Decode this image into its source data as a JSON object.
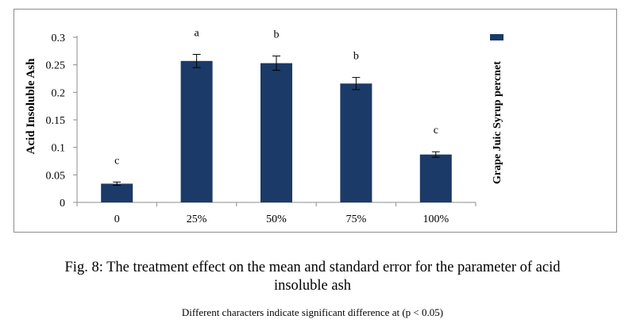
{
  "chart_data": {
    "type": "bar",
    "categories": [
      "0",
      "25%",
      "50%",
      "75%",
      "100%"
    ],
    "series": [
      {
        "name": "Grape Juic Syrup percnet",
        "values": [
          0.034,
          0.257,
          0.253,
          0.216,
          0.087
        ],
        "errors": [
          0.003,
          0.012,
          0.013,
          0.011,
          0.005
        ],
        "significance_letters": [
          "c",
          "a",
          "b",
          "b",
          "c"
        ],
        "color": "#1b3a67"
      }
    ],
    "ylabel": "Acid Insoluble Ash",
    "ylim": [
      0,
      0.3
    ],
    "yticks": [
      0,
      0.05,
      0.1,
      0.15,
      0.2,
      0.25,
      0.3
    ],
    "ytick_labels": [
      "0",
      "0.05",
      "0.1",
      "0.15",
      "0.2",
      "0.25",
      "0.3"
    ],
    "legend_position": "right",
    "grid": false
  },
  "caption": {
    "line1": "Fig. 8: The treatment effect on the mean and standard error for the parameter of acid",
    "line2": "insoluble ash"
  },
  "note": "Different  characters indicate  significant  difference  at (p < 0.05)"
}
